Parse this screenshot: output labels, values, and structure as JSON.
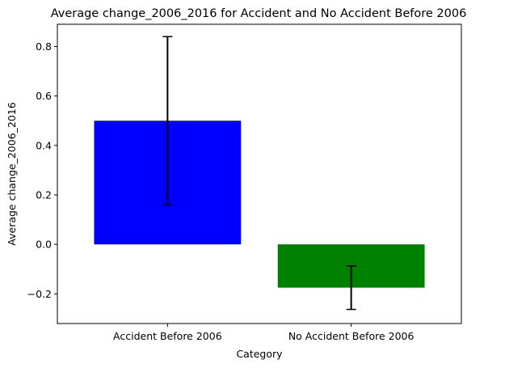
{
  "chart_data": {
    "type": "bar",
    "title": "Average change_2006_2016 for Accident and No Accident Before 2006",
    "xlabel": "Category",
    "ylabel": "Average change_2006_2016",
    "categories": [
      "Accident Before 2006",
      "No Accident Before 2006"
    ],
    "values": [
      0.5,
      -0.175
    ],
    "errors": [
      0.34,
      0.088
    ],
    "colors": [
      "#0000ff",
      "#008000"
    ],
    "ylim": [
      -0.32,
      0.89
    ],
    "yticks": [
      -0.2,
      0.0,
      0.2,
      0.4,
      0.6,
      0.8
    ],
    "ytick_labels": [
      "−0.2",
      "0.0",
      "0.2",
      "0.4",
      "0.6",
      "0.8"
    ],
    "grid": false,
    "error_bar_color": "#000000"
  }
}
